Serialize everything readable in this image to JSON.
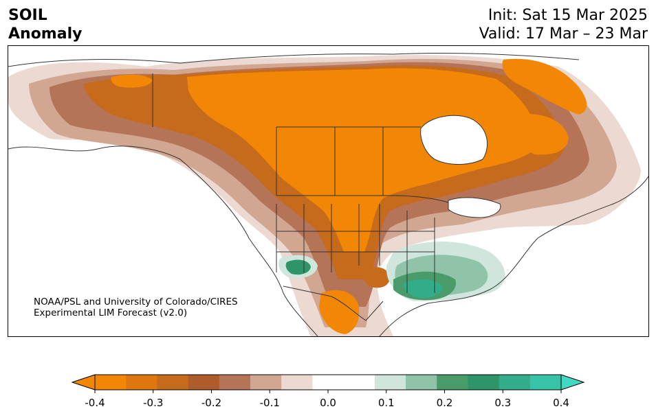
{
  "header": {
    "title_line1": "SOIL",
    "title_line2": "Anomaly",
    "init_text": "Init: Sat 15 Mar 2025",
    "valid_text": "Valid: 17 Mar – 23 Mar"
  },
  "credit": {
    "line1": "NOAA/PSL and University of Colorado/CIRES",
    "line2": "Experimental LIM Forecast (v2.0)"
  },
  "colorbar": {
    "ticks": [
      "-0.4",
      "-0.3",
      "-0.2",
      "-0.1",
      "0.0",
      "0.1",
      "0.2",
      "0.3",
      "0.4"
    ],
    "extend_low_color": "#f28705",
    "extend_high_color": "#3fd9c4",
    "colors": [
      "#f28705",
      "#de770e",
      "#c66a1c",
      "#ae5c2a",
      "#b57357",
      "#d2a792",
      "#ecd9d1",
      "#ffffff",
      "#ffffff",
      "#d0e6dc",
      "#8fc4a9",
      "#4a9b6a",
      "#2e9568",
      "#33ac89",
      "#38c2a8"
    ]
  },
  "map": {
    "colors": {
      "dry_strong": "#f28705",
      "dry_mid": "#c66a1c",
      "dry_brown": "#b57357",
      "dry_light": "#d2a792",
      "dry_faint": "#ecd9d1",
      "wet_faint": "#d0e6dc",
      "wet_light": "#8fc4a9",
      "wet_mid": "#4a9b6a",
      "wet_strong": "#2e9568",
      "wet_teal": "#33ac89"
    }
  }
}
